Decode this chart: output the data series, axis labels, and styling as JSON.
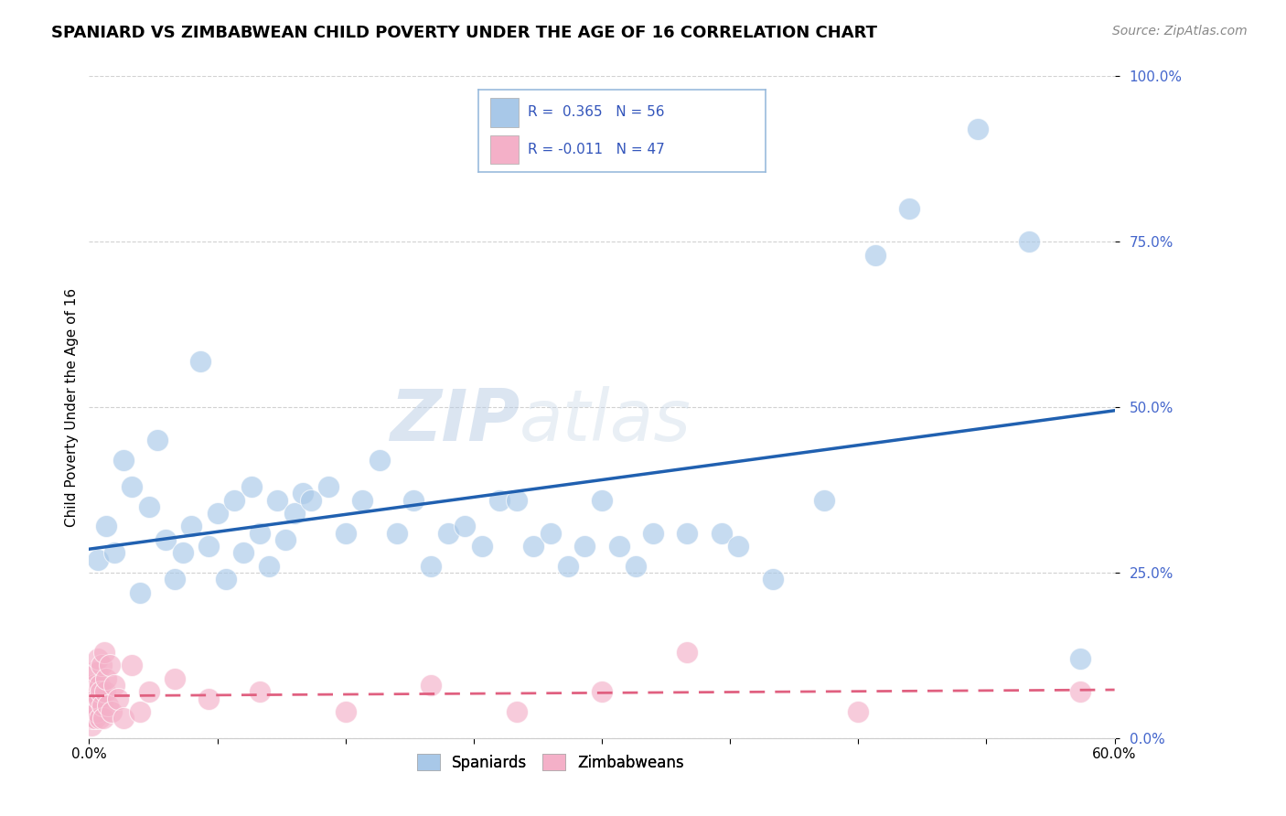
{
  "title": "SPANIARD VS ZIMBABWEAN CHILD POVERTY UNDER THE AGE OF 16 CORRELATION CHART",
  "source": "Source: ZipAtlas.com",
  "ylabel": "Child Poverty Under the Age of 16",
  "ytick_vals": [
    0,
    25,
    50,
    75,
    100
  ],
  "xmin": 0,
  "xmax": 60,
  "ymin": 0,
  "ymax": 100,
  "blue_R": 0.365,
  "blue_N": 56,
  "pink_R": -0.011,
  "pink_N": 47,
  "blue_color": "#a8c8e8",
  "pink_color": "#f4b0c8",
  "blue_line_color": "#2060b0",
  "pink_line_color": "#e06080",
  "watermark_zip": "ZIP",
  "watermark_atlas": "atlas",
  "blue_scatter_x": [
    0.5,
    1.0,
    1.5,
    2.0,
    2.5,
    3.0,
    3.5,
    4.0,
    4.5,
    5.0,
    5.5,
    6.0,
    6.5,
    7.0,
    7.5,
    8.0,
    8.5,
    9.0,
    9.5,
    10.0,
    10.5,
    11.0,
    11.5,
    12.0,
    12.5,
    13.0,
    14.0,
    15.0,
    16.0,
    17.0,
    18.0,
    19.0,
    20.0,
    21.0,
    22.0,
    23.0,
    24.0,
    25.0,
    26.0,
    27.0,
    28.0,
    29.0,
    30.0,
    31.0,
    32.0,
    33.0,
    35.0,
    37.0,
    38.0,
    40.0,
    43.0,
    46.0,
    48.0,
    52.0,
    55.0,
    58.0
  ],
  "blue_scatter_y": [
    27,
    32,
    28,
    42,
    38,
    22,
    35,
    45,
    30,
    24,
    28,
    32,
    57,
    29,
    34,
    24,
    36,
    28,
    38,
    31,
    26,
    36,
    30,
    34,
    37,
    36,
    38,
    31,
    36,
    42,
    31,
    36,
    26,
    31,
    32,
    29,
    36,
    36,
    29,
    31,
    26,
    29,
    36,
    29,
    26,
    31,
    31,
    31,
    29,
    24,
    36,
    73,
    80,
    92,
    75,
    12
  ],
  "pink_scatter_x": [
    0.05,
    0.1,
    0.12,
    0.15,
    0.18,
    0.2,
    0.22,
    0.25,
    0.28,
    0.3,
    0.33,
    0.35,
    0.38,
    0.4,
    0.42,
    0.45,
    0.48,
    0.5,
    0.55,
    0.6,
    0.65,
    0.7,
    0.75,
    0.8,
    0.85,
    0.9,
    0.95,
    1.0,
    1.1,
    1.2,
    1.3,
    1.5,
    1.7,
    2.0,
    2.5,
    3.0,
    3.5,
    5.0,
    7.0,
    10.0,
    15.0,
    20.0,
    25.0,
    30.0,
    35.0,
    45.0,
    58.0
  ],
  "pink_scatter_y": [
    3,
    5,
    2,
    8,
    4,
    6,
    3,
    10,
    5,
    7,
    4,
    8,
    3,
    6,
    5,
    10,
    4,
    12,
    6,
    8,
    3,
    7,
    11,
    5,
    3,
    13,
    7,
    9,
    5,
    11,
    4,
    8,
    6,
    3,
    11,
    4,
    7,
    9,
    6,
    7,
    4,
    8,
    4,
    7,
    13,
    4,
    7
  ]
}
